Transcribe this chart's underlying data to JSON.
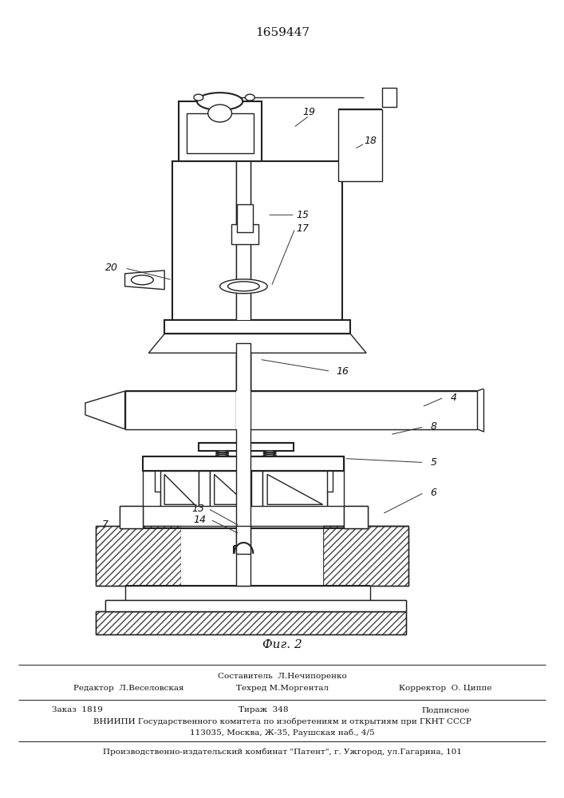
{
  "patent_number": "1659447",
  "fig_label": "Фиг. 2",
  "background_color": "#ffffff",
  "line_color": "#222222",
  "footer": {
    "line1_center": "Составитель  Л.Нечипоренко",
    "line1_left": "Редактор  Л.Веселовская",
    "line1_right": "Корректор  О. Циппе",
    "line2_center": "Техред М.Моргентал",
    "line3_left": "Заказ  1819",
    "line3_center": "Тираж  348",
    "line3_right": "Подписное",
    "line4": "ВНИИПИ Государственного комитета по изобретениям и открытиям при ГКНТ СССР",
    "line5": "113035, Москва, Ж-35, Раушская наб., 4/5",
    "line6": "Производственно-издательский комбинат \"Патент\", г. Ужгород, ул.Гагарина, 101"
  }
}
